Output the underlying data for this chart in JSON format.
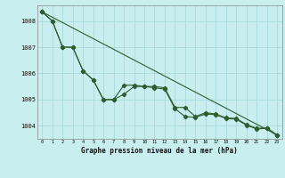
{
  "title": "Graphe pression niveau de la mer (hPa)",
  "bg_color": "#c8eef0",
  "grid_color": "#a0d8d8",
  "line_color": "#2d5e2d",
  "x_ticks": [
    0,
    1,
    2,
    3,
    4,
    5,
    6,
    7,
    8,
    9,
    10,
    11,
    12,
    13,
    14,
    15,
    16,
    17,
    18,
    19,
    20,
    21,
    22,
    23
  ],
  "ylim": [
    1003.5,
    1008.6
  ],
  "y_ticks": [
    1004,
    1005,
    1006,
    1007,
    1008
  ],
  "series1_x": [
    0,
    1,
    2,
    3,
    4,
    5,
    6,
    7,
    8,
    9,
    10,
    11,
    12,
    13,
    14,
    15,
    16,
    17,
    18,
    19,
    20,
    21,
    22,
    23
  ],
  "series1_y": [
    1008.35,
    1008.0,
    1007.0,
    1007.0,
    1006.1,
    1005.75,
    1005.0,
    1005.0,
    1005.55,
    1005.55,
    1005.5,
    1005.5,
    1005.45,
    1004.7,
    1004.7,
    1004.35,
    1004.5,
    1004.45,
    1004.3,
    1004.28,
    1004.05,
    1003.9,
    1003.92,
    1003.65
  ],
  "series2_x": [
    0,
    1,
    2,
    3,
    4,
    5,
    6,
    7,
    8,
    9,
    10,
    11,
    12,
    13,
    14,
    15,
    16,
    17,
    18,
    19,
    20,
    21,
    22,
    23
  ],
  "series2_y": [
    1008.35,
    1008.0,
    1007.0,
    1007.0,
    1006.1,
    1005.75,
    1005.0,
    1005.0,
    1005.2,
    1005.5,
    1005.5,
    1005.45,
    1005.4,
    1004.65,
    1004.35,
    1004.32,
    1004.45,
    1004.42,
    1004.28,
    1004.25,
    1004.02,
    1003.88,
    1003.9,
    1003.62
  ],
  "series3_x": [
    0,
    23
  ],
  "series3_y": [
    1008.35,
    1003.65
  ]
}
